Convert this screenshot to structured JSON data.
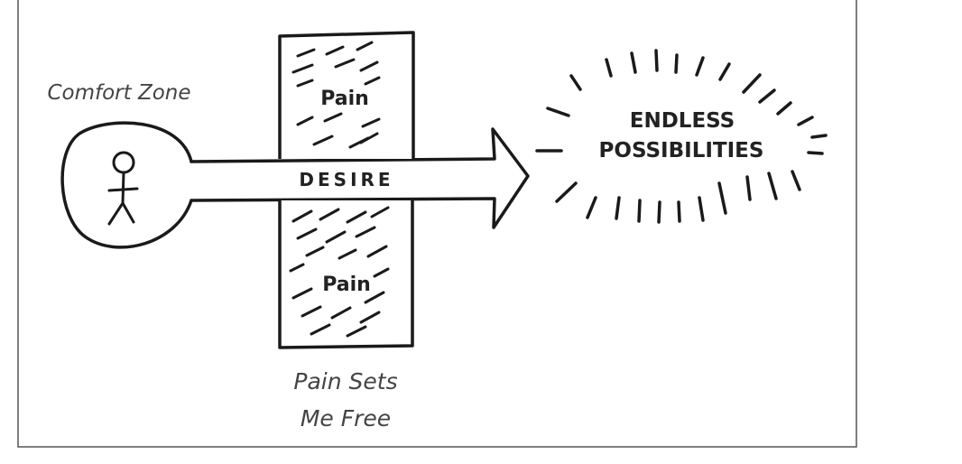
{
  "comfort_zone_label": "Comfort Zone",
  "desire_label": "DESIRE",
  "pain_top_label": "Pain",
  "pain_bottom_label": "Pain",
  "endless_line1": "ENDLESS",
  "endless_line2": "POSSIBILITIES",
  "caption_line1": "Pain Sets",
  "caption_line2": "Me Free",
  "colors": {
    "ink": "#1a1a1a",
    "frame": "#555555",
    "background": "#ffffff"
  }
}
